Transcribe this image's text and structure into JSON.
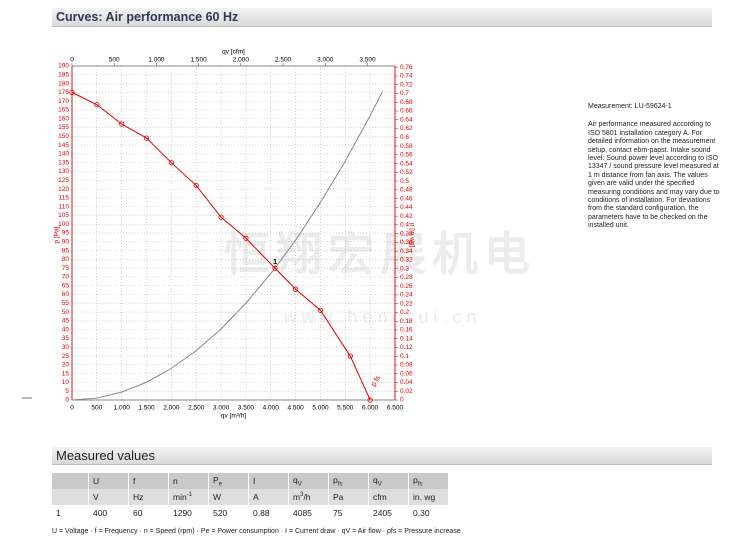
{
  "header": {
    "title": "Curves: Air performance 60 Hz"
  },
  "chart_data": {
    "type": "line",
    "x_label": "qv [m³/h]",
    "x2_label": "qv [cfm]",
    "y_label": "p [Pa]",
    "y2_label": "p [in wg]",
    "xlim": [
      0,
      6500
    ],
    "xticks": [
      0,
      500,
      {
        "value": 1000,
        "label": "1.000"
      },
      {
        "value": 1500,
        "label": "1.500"
      },
      {
        "value": 2000,
        "label": "2.000"
      },
      {
        "value": 2500,
        "label": "2.500"
      },
      {
        "value": 3000,
        "label": "3.000"
      },
      {
        "value": 3500,
        "label": "3.500"
      },
      {
        "value": 4000,
        "label": "4.000"
      },
      {
        "value": 4500,
        "label": "4.500"
      },
      {
        "value": 5000,
        "label": "5.000"
      },
      {
        "value": 5500,
        "label": "5.500"
      },
      {
        "value": 6000,
        "label": "6.000"
      },
      {
        "value": 6500,
        "label": "6.500"
      }
    ],
    "x2lim": [
      0,
      3826
    ],
    "x2ticks": [
      0,
      500,
      {
        "value": 1000,
        "label": "1.000"
      },
      {
        "value": 1500,
        "label": "1.500"
      },
      {
        "value": 2000,
        "label": "2.000"
      },
      {
        "value": 2500,
        "label": "2.500"
      },
      {
        "value": 3000,
        "label": "3.000"
      },
      {
        "value": 3500,
        "label": "3.500"
      }
    ],
    "ylim": [
      0,
      190
    ],
    "yticks": [
      0,
      5,
      10,
      15,
      20,
      25,
      30,
      35,
      40,
      45,
      50,
      55,
      60,
      65,
      70,
      75,
      80,
      85,
      90,
      95,
      100,
      105,
      110,
      115,
      120,
      125,
      130,
      135,
      140,
      145,
      150,
      155,
      160,
      165,
      170,
      175,
      180,
      185,
      190
    ],
    "y2lim": [
      0,
      0.7628
    ],
    "y2ticks": [
      0,
      0.02,
      0.04,
      0.06,
      0.08,
      0.1,
      0.12,
      0.14,
      0.16,
      0.18,
      0.2,
      0.22,
      0.24,
      0.26,
      0.28,
      0.3,
      0.32,
      0.34,
      0.36,
      0.38,
      0.4,
      0.42,
      0.44,
      0.46,
      0.48,
      0.5,
      0.52,
      0.54,
      0.56,
      0.58,
      0.6,
      0.62,
      0.64,
      0.66,
      0.68,
      0.7,
      0.72,
      0.74,
      0.76
    ],
    "grid": true,
    "series": [
      {
        "name": "p fs",
        "color": "#e00000",
        "markers": true,
        "x": [
          0,
          500,
          1000,
          1500,
          2000,
          2500,
          3000,
          3500,
          4085,
          4500,
          5000,
          5600,
          6000
        ],
        "values": [
          175,
          168,
          157,
          149,
          135,
          122,
          104,
          92,
          75,
          63,
          51,
          25,
          0
        ]
      },
      {
        "color": "#888888",
        "markers": false,
        "x": [
          0,
          500,
          1000,
          1500,
          2000,
          2500,
          3000,
          3500,
          4000,
          4085,
          4500,
          5000,
          5500,
          6000,
          6250
        ],
        "values": [
          0,
          1.1,
          4.5,
          10.1,
          18,
          28.1,
          40.4,
          55.1,
          71.9,
          75,
          91,
          112.4,
          135.9,
          161.8,
          175.6
        ]
      }
    ],
    "annotations": [
      {
        "text": "1",
        "x": 4085,
        "y": 75
      }
    ]
  },
  "watermark": {
    "brand": "恒翔宏展机电",
    "url": "w w w . h e n g r u i . c n"
  },
  "side_note": {
    "measurement": "Measurement: LU-59624-1",
    "text": "Air performance measured according to ISO 5801 installation category A. For detailed information on the measurement setup, contact ebm-papst. Intake sound level: Sound power level according to ISO 13347 / sound pressure level measured at 1 m distance from fan axis. The values given are valid under the specified measuring conditions and may vary due to conditions of installation. For deviations from the standard configuration, the parameters have to be checked on the installed unit."
  },
  "measured": {
    "title": "Measured values",
    "header": [
      null,
      {
        "t": "U"
      },
      {
        "t": "f"
      },
      {
        "t": "n"
      },
      {
        "t": "P",
        "sub": "e"
      },
      {
        "t": "I"
      },
      {
        "t": "q",
        "sub": "V"
      },
      {
        "t": "p",
        "sub": "fs"
      },
      {
        "t": "q",
        "sub": "V"
      },
      {
        "t": "p",
        "sub": "fs"
      }
    ],
    "units": [
      null,
      {
        "t": "V"
      },
      {
        "t": "Hz"
      },
      {
        "t": "min",
        "sup": "-1"
      },
      {
        "t": "W"
      },
      {
        "t": "A"
      },
      {
        "t": "m",
        "sup": "3",
        "after": "/h"
      },
      {
        "t": "Pa"
      },
      {
        "t": "cfm"
      },
      {
        "t": "in. wg"
      }
    ],
    "rows": [
      [
        "1",
        "400",
        "60",
        "1290",
        "520",
        "0.88",
        "4085",
        "75",
        "2405",
        "0.30"
      ]
    ],
    "legend": "U = Voltage · f = Frequency · n = Speed (rpm) · Pe = Power consumption · I = Current draw · qV = Air flow · pfs = Pressure increase"
  }
}
